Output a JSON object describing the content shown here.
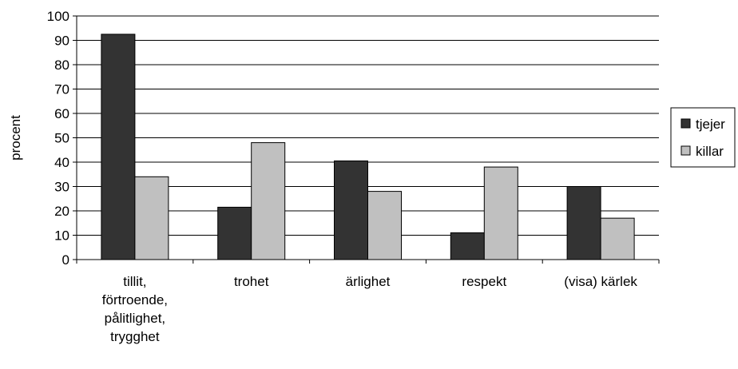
{
  "chart_data": {
    "type": "bar",
    "ylabel": "procent",
    "ylim": [
      0,
      100
    ],
    "yticks": [
      0,
      10,
      20,
      30,
      40,
      50,
      60,
      70,
      80,
      90,
      100
    ],
    "grid": true,
    "legend_position": "right",
    "categories": [
      [
        "tillit,",
        "förtroende,",
        "pålitlighet,",
        "trygghet"
      ],
      [
        "trohet"
      ],
      [
        "ärlighet"
      ],
      [
        "respekt"
      ],
      [
        "(visa) kärlek"
      ]
    ],
    "series": [
      {
        "name": "tjejer",
        "color": "#333333",
        "values": [
          92.5,
          21.5,
          40.5,
          11,
          30
        ]
      },
      {
        "name": "killar",
        "color": "#c0c0c0",
        "values": [
          34,
          48,
          28,
          38,
          17
        ]
      }
    ]
  }
}
